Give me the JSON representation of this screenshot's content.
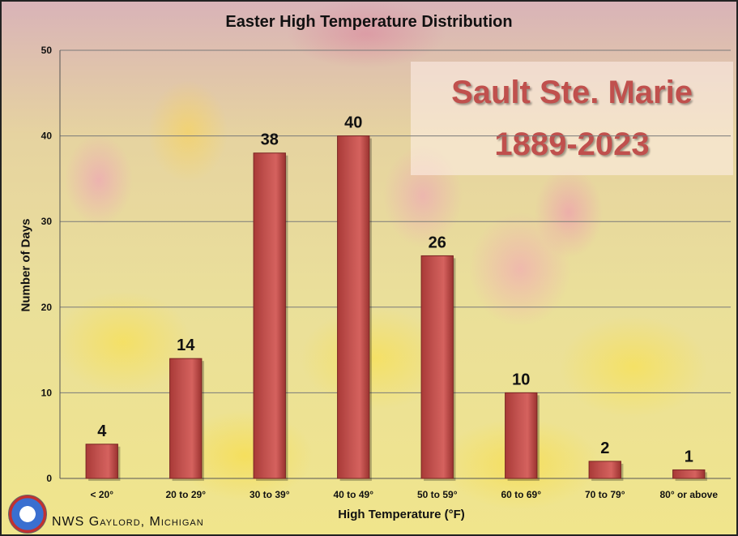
{
  "chart_data": {
    "type": "bar",
    "title": "Easter High Temperature Distribution",
    "xlabel": "High Temperature (°F)",
    "ylabel": "Number of Days",
    "categories": [
      "< 20°",
      "20 to 29°",
      "30 to 39°",
      "40 to 49°",
      "50 to 59°",
      "60 to 69°",
      "70 to 79°",
      "80° or above"
    ],
    "values": [
      4,
      14,
      38,
      40,
      26,
      10,
      2,
      1
    ],
    "ylim": [
      0,
      50
    ],
    "yticks": [
      0,
      10,
      20,
      30,
      40,
      50
    ],
    "grid": true,
    "bar_color": "#c0504d",
    "data_labels": true
  },
  "inset": {
    "line1": "Sault Ste. Marie",
    "line2": "1889-2023",
    "color": "#c0504d"
  },
  "footer": {
    "credit": "NWS Gaylord, Michigan",
    "logo_icon": "nws-logo-icon"
  }
}
